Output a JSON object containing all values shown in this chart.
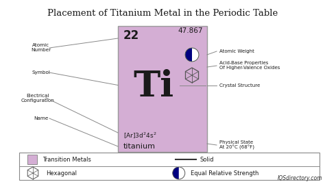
{
  "title": "Placement of Titanium Metal in the Periodic Table",
  "bg_color": "#ffffff",
  "card_color": "#d4aed4",
  "card_edge": "#999999",
  "atomic_number": "22",
  "atomic_weight": "47.867",
  "symbol": "Ti",
  "name": "titanium",
  "left_labels": [
    "Atomic\nNumber",
    "Symbol",
    "Electrical\nConfiguration",
    "Name"
  ],
  "right_labels": [
    "Atomic Weight",
    "Acid-Base Properties\nOf Higher-Valence Oxides",
    "Crystal Structure",
    "Physical State\nAt 20°C (68°F)"
  ],
  "legend_box_color": "#d4aed4",
  "watermark": "IQSdirectory.com",
  "text_color": "#1a1a1a",
  "line_color": "#888888",
  "fig_w": 4.74,
  "fig_h": 2.66
}
